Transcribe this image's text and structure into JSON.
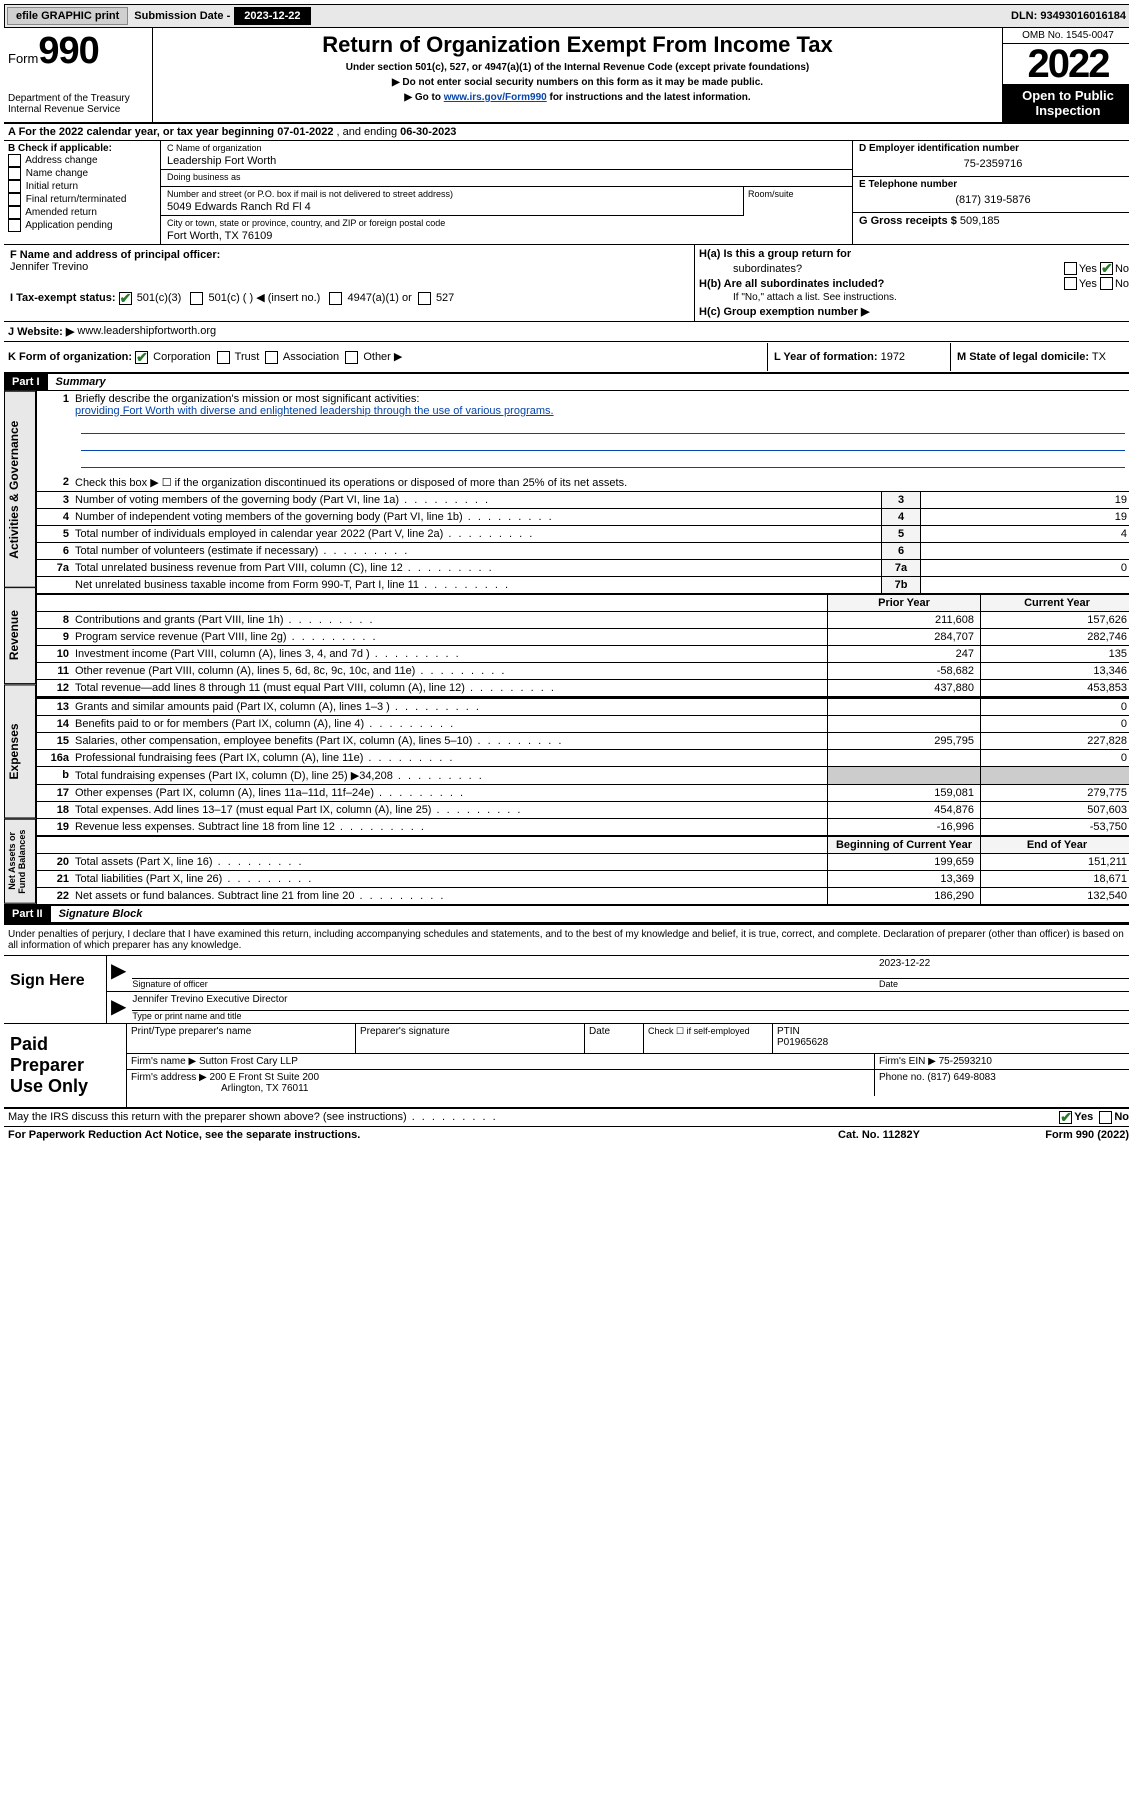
{
  "topbar": {
    "efile": "efile GRAPHIC print",
    "sub_label": "Submission Date -",
    "sub_date": "2023-12-22",
    "dln": "DLN: 93493016016184"
  },
  "header": {
    "form_word": "Form",
    "form_num": "990",
    "dept": "Department of the Treasury",
    "irs": "Internal Revenue Service",
    "title": "Return of Organization Exempt From Income Tax",
    "sub1": "Under section 501(c), 527, or 4947(a)(1) of the Internal Revenue Code (except private foundations)",
    "sub2": "▶ Do not enter social security numbers on this form as it may be made public.",
    "sub3_pre": "▶ Go to ",
    "sub3_link": "www.irs.gov/Form990",
    "sub3_post": " for instructions and the latest information.",
    "omb": "OMB No. 1545-0047",
    "year": "2022",
    "inspect": "Open to Public Inspection"
  },
  "rowA": {
    "pre": "A For the 2022 calendar year, or tax year beginning ",
    "begin": "07-01-2022",
    "mid": " , and ending ",
    "end": "06-30-2023"
  },
  "colB": {
    "title": "B Check if applicable:",
    "items": [
      "Address change",
      "Name change",
      "Initial return",
      "Final return/terminated",
      "Amended return",
      "Application pending"
    ]
  },
  "colC": {
    "c_lab": "C Name of organization",
    "c_val": "Leadership Fort Worth",
    "dba_lab": "Doing business as",
    "dba_val": "",
    "addr_lab": "Number and street (or P.O. box if mail is not delivered to street address)",
    "addr_val": "5049 Edwards Ranch Rd Fl 4",
    "room_lab": "Room/suite",
    "city_lab": "City or town, state or province, country, and ZIP or foreign postal code",
    "city_val": "Fort Worth, TX  76109"
  },
  "colDE": {
    "d_lab": "D Employer identification number",
    "d_val": "75-2359716",
    "e_lab": "E Telephone number",
    "e_val": "(817) 319-5876",
    "g_lab": "G Gross receipts $",
    "g_val": "509,185"
  },
  "rowF": {
    "f_lab": "F Name and address of principal officer:",
    "f_val": "Jennifer Trevino"
  },
  "rowH": {
    "ha": "H(a)  Is this a group return for",
    "ha2": "subordinates?",
    "hb": "H(b)  Are all subordinates included?",
    "hb_note": "If \"No,\" attach a list. See instructions.",
    "hc": "H(c)  Group exemption number ▶",
    "yes": "Yes",
    "no": "No"
  },
  "rowI": {
    "lab": "I  Tax-exempt status:",
    "opt1": "501(c)(3)",
    "opt2": "501(c) (  ) ◀ (insert no.)",
    "opt3": "4947(a)(1) or",
    "opt4": "527"
  },
  "rowJ": {
    "lab": "J  Website: ▶",
    "val": "www.leadershipfortworth.org"
  },
  "rowK": {
    "lab": "K Form of organization:",
    "corp": "Corporation",
    "trust": "Trust",
    "assoc": "Association",
    "other": "Other ▶",
    "l_lab": "L Year of formation:",
    "l_val": "1972",
    "m_lab": "M State of legal domicile:",
    "m_val": "TX"
  },
  "part1": {
    "hdr": "Part I",
    "title": "Summary",
    "line1_lab": "Briefly describe the organization's mission or most significant activities:",
    "line1_val": "providing Fort Worth with diverse and enlightened leadership through the use of various programs.",
    "line2": "Check this box ▶ ☐ if the organization discontinued its operations or disposed of more than 25% of its net assets.",
    "lines_gov": [
      {
        "n": "3",
        "d": "Number of voting members of the governing body (Part VI, line 1a)",
        "b": "3",
        "v": "19"
      },
      {
        "n": "4",
        "d": "Number of independent voting members of the governing body (Part VI, line 1b)",
        "b": "4",
        "v": "19"
      },
      {
        "n": "5",
        "d": "Total number of individuals employed in calendar year 2022 (Part V, line 2a)",
        "b": "5",
        "v": "4"
      },
      {
        "n": "6",
        "d": "Total number of volunteers (estimate if necessary)",
        "b": "6",
        "v": ""
      },
      {
        "n": "7a",
        "d": "Total unrelated business revenue from Part VIII, column (C), line 12",
        "b": "7a",
        "v": "0"
      },
      {
        "n": "",
        "d": "Net unrelated business taxable income from Form 990-T, Part I, line 11",
        "b": "7b",
        "v": ""
      }
    ],
    "col_prior": "Prior Year",
    "col_curr": "Current Year",
    "lines_rev": [
      {
        "n": "8",
        "d": "Contributions and grants (Part VIII, line 1h)",
        "p": "211,608",
        "c": "157,626"
      },
      {
        "n": "9",
        "d": "Program service revenue (Part VIII, line 2g)",
        "p": "284,707",
        "c": "282,746"
      },
      {
        "n": "10",
        "d": "Investment income (Part VIII, column (A), lines 3, 4, and 7d )",
        "p": "247",
        "c": "135"
      },
      {
        "n": "11",
        "d": "Other revenue (Part VIII, column (A), lines 5, 6d, 8c, 9c, 10c, and 11e)",
        "p": "-58,682",
        "c": "13,346"
      },
      {
        "n": "12",
        "d": "Total revenue—add lines 8 through 11 (must equal Part VIII, column (A), line 12)",
        "p": "437,880",
        "c": "453,853"
      }
    ],
    "lines_exp": [
      {
        "n": "13",
        "d": "Grants and similar amounts paid (Part IX, column (A), lines 1–3 )",
        "p": "",
        "c": "0"
      },
      {
        "n": "14",
        "d": "Benefits paid to or for members (Part IX, column (A), line 4)",
        "p": "",
        "c": "0"
      },
      {
        "n": "15",
        "d": "Salaries, other compensation, employee benefits (Part IX, column (A), lines 5–10)",
        "p": "295,795",
        "c": "227,828"
      },
      {
        "n": "16a",
        "d": "Professional fundraising fees (Part IX, column (A), line 11e)",
        "p": "",
        "c": "0"
      },
      {
        "n": "b",
        "d": "Total fundraising expenses (Part IX, column (D), line 25) ▶34,208",
        "p": "shade",
        "c": "shade"
      },
      {
        "n": "17",
        "d": "Other expenses (Part IX, column (A), lines 11a–11d, 11f–24e)",
        "p": "159,081",
        "c": "279,775"
      },
      {
        "n": "18",
        "d": "Total expenses. Add lines 13–17 (must equal Part IX, column (A), line 25)",
        "p": "454,876",
        "c": "507,603"
      },
      {
        "n": "19",
        "d": "Revenue less expenses. Subtract line 18 from line 12",
        "p": "-16,996",
        "c": "-53,750"
      }
    ],
    "col_beg": "Beginning of Current Year",
    "col_end": "End of Year",
    "lines_net": [
      {
        "n": "20",
        "d": "Total assets (Part X, line 16)",
        "p": "199,659",
        "c": "151,211"
      },
      {
        "n": "21",
        "d": "Total liabilities (Part X, line 26)",
        "p": "13,369",
        "c": "18,671"
      },
      {
        "n": "22",
        "d": "Net assets or fund balances. Subtract line 21 from line 20",
        "p": "186,290",
        "c": "132,540"
      }
    ],
    "tab_gov": "Activities & Governance",
    "tab_rev": "Revenue",
    "tab_exp": "Expenses",
    "tab_net": "Net Assets or Fund Balances"
  },
  "part2": {
    "hdr": "Part II",
    "title": "Signature Block",
    "declare": "Under penalties of perjury, I declare that I have examined this return, including accompanying schedules and statements, and to the best of my knowledge and belief, it is true, correct, and complete. Declaration of preparer (other than officer) is based on all information of which preparer has any knowledge.",
    "sign_here": "Sign Here",
    "sig_officer": "Signature of officer",
    "sig_date": "Date",
    "sig_date_val": "2023-12-22",
    "sig_name_val": "Jennifer Trevino Executive Director",
    "sig_name_lab": "Type or print name and title",
    "paid": "Paid Preparer Use Only",
    "p_name_lab": "Print/Type preparer's name",
    "p_sig_lab": "Preparer's signature",
    "p_date_lab": "Date",
    "p_check": "Check ☐ if self-employed",
    "ptin_lab": "PTIN",
    "ptin_val": "P01965628",
    "firm_name_lab": "Firm's name    ▶",
    "firm_name_val": "Sutton Frost Cary LLP",
    "firm_ein_lab": "Firm's EIN ▶",
    "firm_ein_val": "75-2593210",
    "firm_addr_lab": "Firm's address ▶",
    "firm_addr_val1": "200 E Front St Suite 200",
    "firm_addr_val2": "Arlington, TX  76011",
    "firm_phone_lab": "Phone no.",
    "firm_phone_val": "(817) 649-8083"
  },
  "footer": {
    "discuss": "May the IRS discuss this return with the preparer shown above? (see instructions)",
    "yes": "Yes",
    "no": "No",
    "pra": "For Paperwork Reduction Act Notice, see the separate instructions.",
    "cat": "Cat. No. 11282Y",
    "form": "Form 990 (2022)"
  }
}
